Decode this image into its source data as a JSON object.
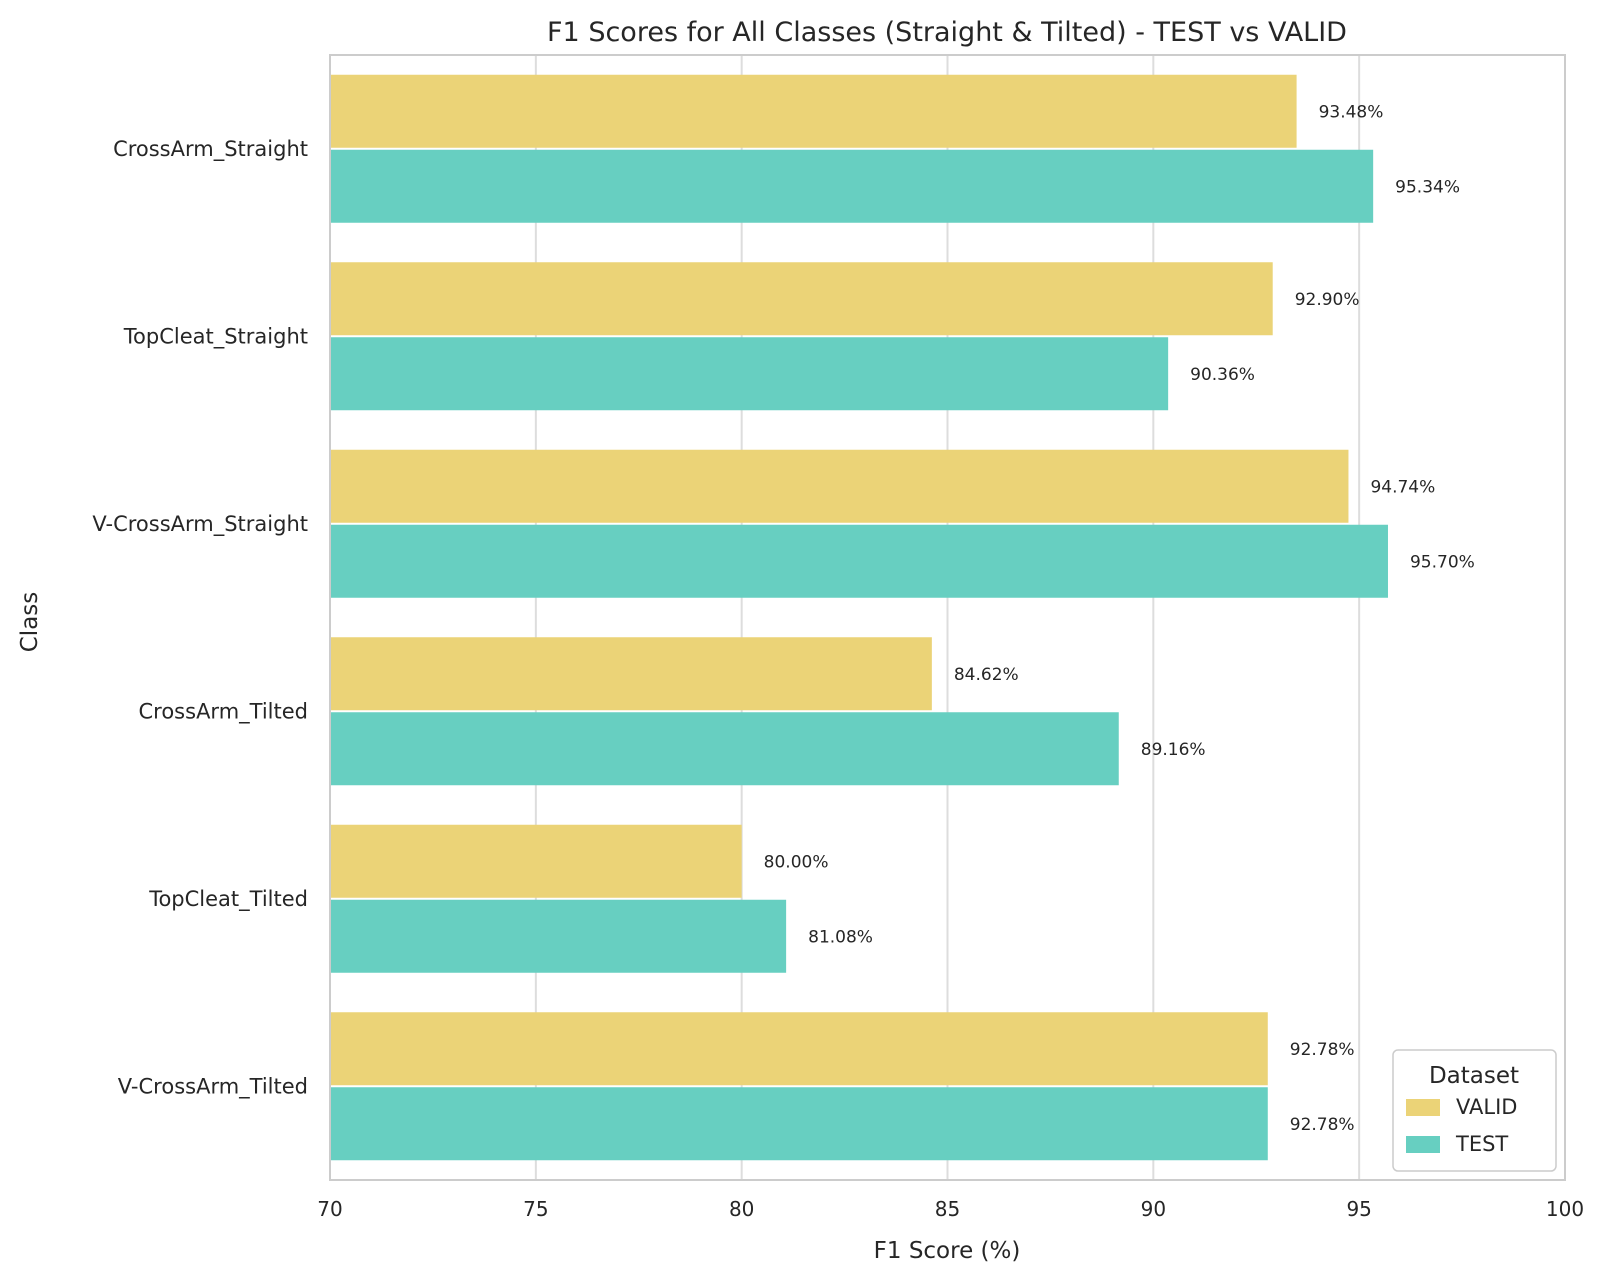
{
  "chart_data": {
    "type": "bar",
    "orientation": "horizontal",
    "title": "F1 Scores for All Classes (Straight & Tilted) - TEST vs VALID",
    "xlabel": "F1 Score (%)",
    "ylabel": "Class",
    "xlim": [
      70,
      100
    ],
    "xticks": [
      70,
      75,
      80,
      85,
      90,
      95,
      100
    ],
    "grid": "vertical",
    "categories": [
      "CrossArm_Straight",
      "TopCleat_Straight",
      "V-CrossArm_Straight",
      "CrossArm_Tilted",
      "TopCleat_Tilted",
      "V-CrossArm_Tilted"
    ],
    "series": [
      {
        "name": "VALID",
        "color": "#ebd377",
        "values": [
          93.48,
          92.9,
          94.74,
          84.62,
          80.0,
          92.78
        ],
        "labels": [
          "93.48%",
          "92.90%",
          "94.74%",
          "84.62%",
          "80.00%",
          "92.78%"
        ]
      },
      {
        "name": "TEST",
        "color": "#67cfc1",
        "values": [
          95.34,
          90.36,
          95.7,
          89.16,
          81.08,
          92.78
        ],
        "labels": [
          "95.34%",
          "90.36%",
          "95.70%",
          "89.16%",
          "81.08%",
          "92.78%"
        ]
      }
    ],
    "legend": {
      "title": "Dataset",
      "position": "bottom-right"
    }
  }
}
